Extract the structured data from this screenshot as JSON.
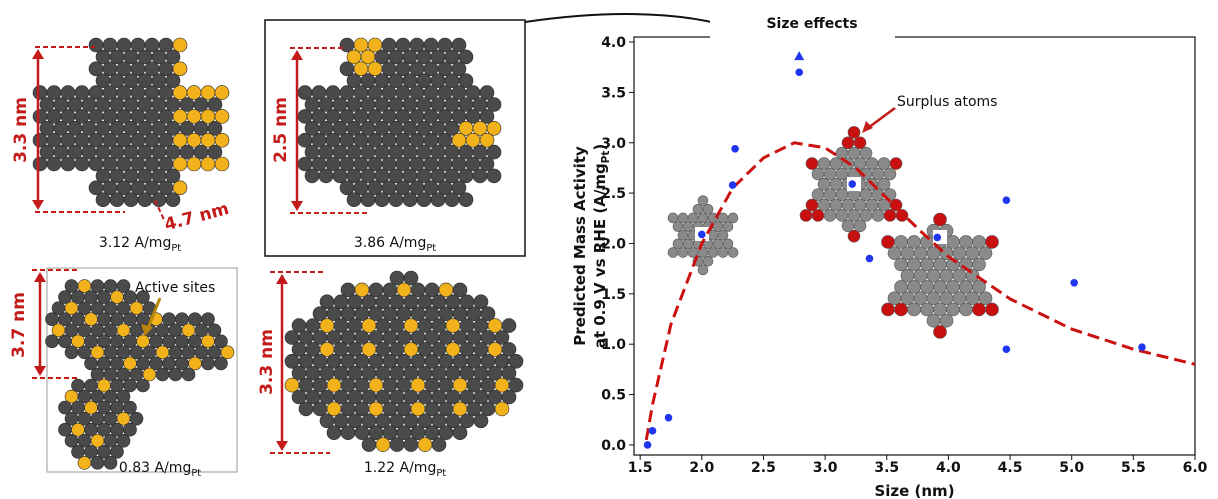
{
  "panels": [
    {
      "label": {
        "text": "3.12 A/mg",
        "sub": "Pt"
      },
      "dimensions": [
        "3.3 nm",
        "4.7 nm"
      ]
    },
    {
      "label": {
        "text": "3.86 A/mg",
        "sub": "Pt"
      },
      "dimensions": [
        "2.5 nm"
      ]
    },
    {
      "label": {
        "text": "0.83 A/mg",
        "sub": "Pt"
      },
      "dimensions": [
        "3.7 nm"
      ],
      "annotation": "Active sites"
    },
    {
      "label": {
        "text": "1.22 A/mg",
        "sub": "Pt"
      },
      "dimensions": [
        "3.3 nm"
      ]
    }
  ],
  "chart_data": {
    "type": "scatter",
    "title": "Size effects",
    "x_label": "Size (nm)",
    "y_label": [
      {
        "text": "Predicted Mass Activity"
      },
      {
        "text": "at 0.9 V vs RHE (A/mg",
        "sub": "Pt",
        "after": ")"
      }
    ],
    "annotation": "Surplus atoms",
    "xlim": [
      1.45,
      6.0
    ],
    "ylim": [
      -0.1,
      4.05
    ],
    "xticks": [
      {
        "value": 1.5,
        "label": "1.5"
      },
      {
        "value": 2,
        "label": "2.0"
      },
      {
        "value": 2.5,
        "label": "2.5"
      },
      {
        "value": 3,
        "label": "3.0"
      },
      {
        "value": 3.5,
        "label": "3.5"
      },
      {
        "value": 4,
        "label": "4.0"
      },
      {
        "value": 4.5,
        "label": "4.5"
      },
      {
        "value": 5,
        "label": "5.0"
      },
      {
        "value": 5.5,
        "label": "5.5"
      },
      {
        "value": 6,
        "label": "6.0"
      }
    ],
    "yticks": [
      {
        "value": 0,
        "label": "0.0"
      },
      {
        "value": 0.5,
        "label": "0.5"
      },
      {
        "value": 1,
        "label": "1.0"
      },
      {
        "value": 1.5,
        "label": "1.5"
      },
      {
        "value": 2,
        "label": "2.0"
      },
      {
        "value": 2.5,
        "label": "2.5"
      },
      {
        "value": 3,
        "label": "3.0"
      },
      {
        "value": 3.5,
        "label": "3.5"
      },
      {
        "value": 4,
        "label": "4.0"
      }
    ],
    "series": [
      {
        "color": "#1f35f0",
        "marker": "circle",
        "x": [
          1.56,
          1.6,
          1.73,
          2.0,
          2.27,
          2.25,
          2.79,
          3.22,
          3.36,
          3.91,
          4.47,
          4.47,
          5.02,
          5.57
        ],
        "values": [
          0.0,
          0.14,
          0.27,
          2.09,
          2.94,
          2.58,
          3.7,
          2.59,
          1.85,
          2.06,
          2.43,
          0.95,
          1.61,
          0.97
        ]
      },
      {
        "color": "#1f35f0",
        "marker": "triangle",
        "x": [
          2.79
        ],
        "values": [
          3.86
        ]
      }
    ],
    "fit": {
      "color": "#cc1111",
      "style": "dashed",
      "x": [
        1.55,
        1.6,
        1.75,
        2.0,
        2.25,
        2.5,
        2.75,
        3.0,
        3.25,
        3.5,
        3.75,
        4.0,
        4.5,
        5.0,
        5.5,
        6.0
      ],
      "values": [
        0.05,
        0.4,
        1.2,
        2.0,
        2.55,
        2.85,
        3.0,
        2.95,
        2.75,
        2.45,
        2.15,
        1.87,
        1.45,
        1.15,
        0.95,
        0.8
      ]
    }
  }
}
